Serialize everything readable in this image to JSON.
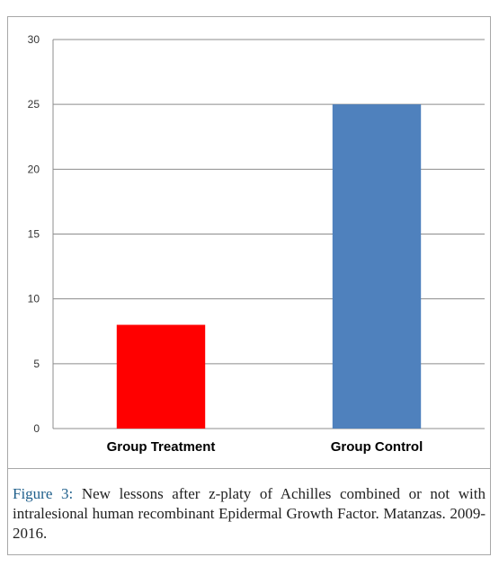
{
  "chart_data": {
    "type": "bar",
    "categories": [
      "Group Treatment",
      "Group Control"
    ],
    "values": [
      8,
      25
    ],
    "colors": [
      "#ff0000",
      "#4f81bd"
    ],
    "ylim": [
      0,
      30
    ],
    "yticks": [
      0,
      5,
      10,
      15,
      20,
      25,
      30
    ],
    "grid": true,
    "legend": false,
    "title": "",
    "xlabel": "",
    "ylabel": ""
  },
  "caption": {
    "label": "Figure 3:",
    "text": " New lessons after z-platy of Achilles combined or not with intralesional human recombinant Epidermal Growth Factor. Matanzas. 2009-2016."
  }
}
